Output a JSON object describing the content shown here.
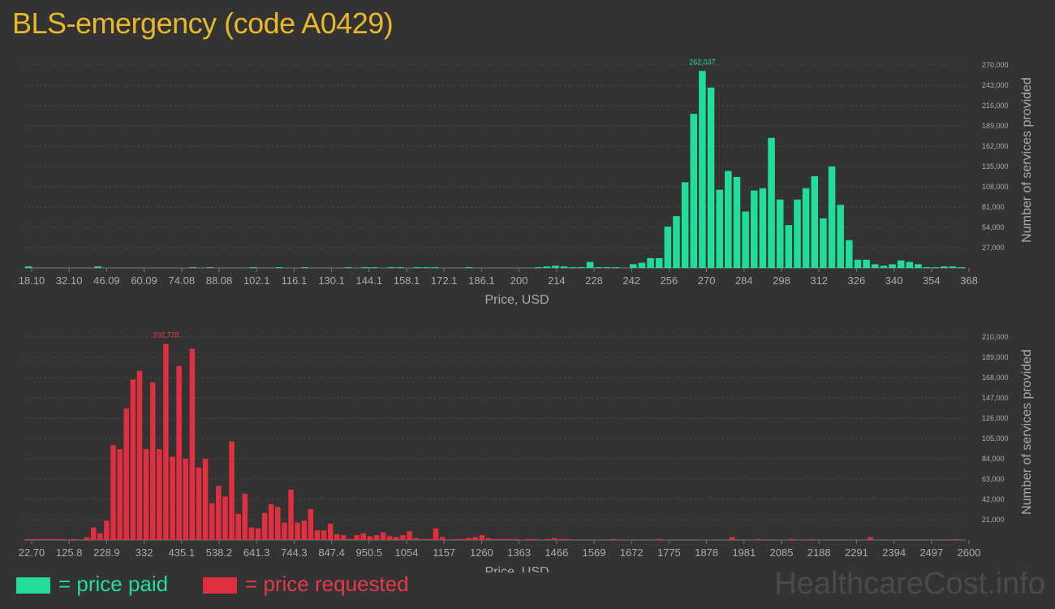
{
  "title": "BLS-emergency (code A0429)",
  "watermark": "HealthcareCost.info",
  "legend": {
    "paid_label": "= price paid",
    "requested_label": "= price requested"
  },
  "colors": {
    "paid": "#22dd99",
    "requested": "#e03040",
    "title": "#e8b82a"
  },
  "chart_data": [
    {
      "type": "bar",
      "series": [
        {
          "name": "price paid"
        }
      ],
      "xlabel": "Price, USD",
      "ylabel": "Number of services provided",
      "xticks": [
        "18.10",
        "32.10",
        "46.09",
        "60.09",
        "74.08",
        "88.08",
        "102.1",
        "116.1",
        "130.1",
        "144.1",
        "158.1",
        "172.1",
        "186.1",
        "200",
        "214",
        "228",
        "242",
        "256",
        "270",
        "284",
        "298",
        "312",
        "326",
        "340",
        "354",
        "368"
      ],
      "yticks": [
        "27,000",
        "54,000",
        "81,000",
        "108,000",
        "135,000",
        "162,000",
        "189,000",
        "216,000",
        "243,000",
        "270,000"
      ],
      "ylim": [
        0,
        270000
      ],
      "xlim": [
        18.1,
        368
      ],
      "peak_label": "262,037",
      "grid": true,
      "values": [
        2000,
        0,
        0,
        0,
        0,
        0,
        0,
        0,
        2000,
        0,
        0,
        0,
        0,
        0,
        0,
        0,
        0,
        0,
        0,
        1000,
        0,
        1000,
        0,
        0,
        0,
        0,
        1000,
        0,
        0,
        1000,
        0,
        0,
        1000,
        0,
        0,
        0,
        0,
        1000,
        0,
        1000,
        1000,
        0,
        1000,
        1000,
        0,
        1000,
        1000,
        1000,
        0,
        0,
        0,
        1000,
        0,
        0,
        0,
        0,
        0,
        0,
        0,
        1000,
        2000,
        3000,
        2000,
        1000,
        1000,
        8000,
        1000,
        1000,
        1000,
        0,
        5000,
        7000,
        13000,
        13000,
        55000,
        69000,
        114000,
        205000,
        262037,
        240000,
        104000,
        129000,
        121000,
        75000,
        103000,
        106000,
        173000,
        91000,
        57000,
        91000,
        106000,
        122000,
        66000,
        135000,
        84000,
        37000,
        11000,
        11000,
        5000,
        3000,
        5000,
        10000,
        8000,
        5000,
        1000,
        1000,
        2000,
        2000,
        1000
      ]
    },
    {
      "type": "bar",
      "series": [
        {
          "name": "price requested"
        }
      ],
      "xlabel": "Price, USD",
      "ylabel": "Number of services provided",
      "xticks": [
        "22.70",
        "125.8",
        "228.9",
        "332",
        "435.1",
        "538.2",
        "641.3",
        "744.3",
        "847.4",
        "950.5",
        "1054",
        "1157",
        "1260",
        "1363",
        "1466",
        "1569",
        "1672",
        "1775",
        "1878",
        "1981",
        "2085",
        "2188",
        "2291",
        "2394",
        "2497",
        "2600"
      ],
      "yticks": [
        "21,000",
        "42,000",
        "63,000",
        "84,000",
        "105,000",
        "126,000",
        "147,000",
        "168,000",
        "189,000",
        "210,000"
      ],
      "ylim": [
        0,
        210000
      ],
      "xlim": [
        22.7,
        2600
      ],
      "peak_label": "202,728",
      "grid": true,
      "values": [
        1000,
        1000,
        1000,
        1000,
        1000,
        1000,
        0,
        1000,
        0,
        3000,
        13000,
        7000,
        20000,
        98000,
        94000,
        136000,
        166000,
        175000,
        94000,
        163000,
        94000,
        202728,
        86000,
        180000,
        84000,
        198000,
        75000,
        84000,
        38000,
        56000,
        45000,
        102000,
        27000,
        48000,
        13000,
        12000,
        28000,
        37000,
        34000,
        18000,
        52000,
        18000,
        20000,
        32000,
        10000,
        10000,
        17000,
        6000,
        5000,
        1000,
        5000,
        7000,
        4000,
        5000,
        8000,
        4000,
        3000,
        5000,
        9000,
        2000,
        1000,
        1000,
        12000,
        3000,
        0,
        1000,
        1000,
        2000,
        3000,
        5000,
        2000,
        1000,
        1000,
        1000,
        1000,
        0,
        1000,
        1000,
        0,
        1000,
        2000,
        1000,
        1000,
        0,
        0,
        0,
        0,
        0,
        0,
        1000,
        0,
        0,
        0,
        0,
        0,
        0,
        1000,
        0,
        0,
        0,
        0,
        0,
        0,
        0,
        0,
        0,
        0,
        3000,
        0,
        0,
        0,
        1000,
        0,
        0,
        0,
        0,
        1000,
        0,
        0,
        1000,
        0,
        0,
        0,
        0,
        0,
        0,
        0,
        0,
        3000,
        0,
        0,
        0,
        0,
        0,
        0,
        0,
        0,
        0,
        0,
        0,
        0,
        1000,
        0
      ]
    }
  ]
}
